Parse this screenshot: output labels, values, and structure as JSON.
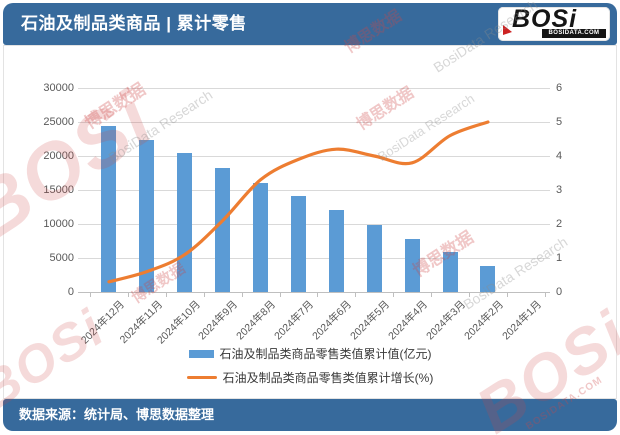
{
  "header": {
    "title": "石油及制品类商品 | 累计零售",
    "logo_text": "BOSi",
    "logo_domain": "BOSIDATA.COM"
  },
  "footer": {
    "source": "数据来源：统计局、博思数据整理"
  },
  "watermark": {
    "logo": "BOSi",
    "cn": "博思数据",
    "research": "BosiData Research",
    "domain": "BOSIDATA.COM"
  },
  "chart_data": {
    "type": "bar",
    "title": "石油及制品类商品 | 累计零售",
    "categories": [
      "2024年12月",
      "2024年11月",
      "2024年10月",
      "2024年9月",
      "2024年8月",
      "2024年7月",
      "2024年6月",
      "2024年5月",
      "2024年4月",
      "2024年3月",
      "2024年2月",
      "2024年1月"
    ],
    "series": [
      {
        "name": "石油及制品类商品零售类值累计值(亿元)",
        "type": "bar",
        "axis": "left",
        "color": "#5B9BD5",
        "values": [
          24400,
          22300,
          20500,
          18300,
          16100,
          14100,
          12000,
          9900,
          7800,
          5900,
          3800,
          null
        ]
      },
      {
        "name": "石油及制品类商品零售类值累计增长(%)",
        "type": "line",
        "axis": "right",
        "color": "#ED7D31",
        "values": [
          0.3,
          0.6,
          1.1,
          2.1,
          3.3,
          3.9,
          4.2,
          4.0,
          3.8,
          4.6,
          5.0,
          null
        ]
      }
    ],
    "left_axis": {
      "min": 0,
      "max": 30000,
      "ticks": [
        0,
        5000,
        10000,
        15000,
        20000,
        25000,
        30000
      ]
    },
    "right_axis": {
      "min": 0,
      "max": 6,
      "ticks": [
        0,
        1,
        2,
        3,
        4,
        5,
        6
      ]
    },
    "grid": true,
    "legend_position": "bottom"
  }
}
